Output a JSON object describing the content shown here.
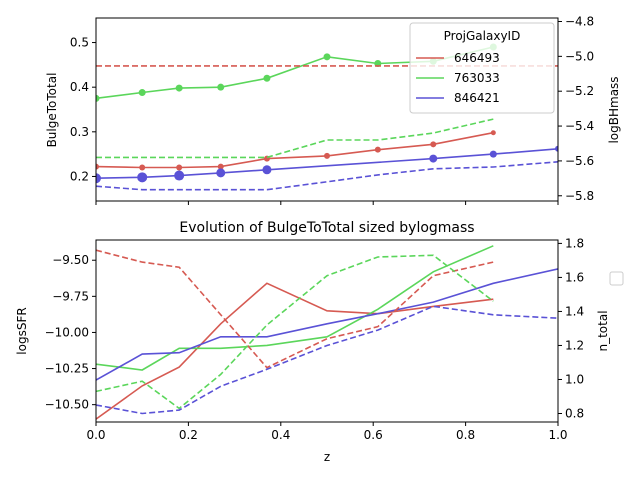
{
  "figure": {
    "background": "#ffffff"
  },
  "chart_data": [
    {
      "type": "line",
      "panel": "top",
      "title": "",
      "xlabel": "",
      "ylabel": "BulgeToTotal",
      "ylabel_right": "logBHmass",
      "xlim": [
        0,
        1
      ],
      "ylim": [
        0.145,
        0.555
      ],
      "ylim_right": [
        -5.83,
        -4.78
      ],
      "yticks": [
        0.2,
        0.3,
        0.4,
        0.5
      ],
      "yticks_labels": [
        "0.2",
        "0.3",
        "0.4",
        "0.5"
      ],
      "yticks_right": [
        -5.8,
        -5.6,
        -5.4,
        -5.2,
        -5.0,
        -4.8
      ],
      "yticks_right_labels": [
        "−5.8",
        "−5.6",
        "−5.4",
        "−5.2",
        "−5.0",
        "−4.8"
      ],
      "xticks": [
        0,
        0.2,
        0.4,
        0.6,
        0.8,
        1.0
      ],
      "show_xtick_labels": false,
      "grid": false,
      "legend": {
        "title": "ProjGalaxyID",
        "placement": "top-right",
        "entries": [
          "646493",
          "763033",
          "846421"
        ]
      },
      "series": [
        {
          "name": "646493",
          "color": "#d65a52",
          "axis": "left",
          "style": "solid",
          "x": [
            0,
            0.1,
            0.18,
            0.27,
            0.37,
            0.5,
            0.61,
            0.73,
            0.86
          ],
          "values": [
            0.222,
            0.22,
            0.22,
            0.222,
            0.24,
            0.246,
            0.26,
            0.272,
            0.298
          ],
          "marker_sizes": [
            3,
            3,
            3,
            3,
            3,
            3,
            3,
            3,
            2.5
          ]
        },
        {
          "name": "763033",
          "color": "#5bd65b",
          "axis": "left",
          "style": "solid",
          "x": [
            0,
            0.1,
            0.18,
            0.27,
            0.37,
            0.5,
            0.61,
            0.73,
            0.86
          ],
          "values": [
            0.375,
            0.388,
            0.398,
            0.4,
            0.42,
            0.468,
            0.453,
            0.458,
            0.49
          ],
          "marker_sizes": [
            3.5,
            3.5,
            3.5,
            3.5,
            3.5,
            3.5,
            3.5,
            3.5,
            3.5
          ]
        },
        {
          "name": "846421",
          "color": "#5a52d6",
          "axis": "left",
          "style": "solid",
          "x": [
            0,
            0.1,
            0.18,
            0.27,
            0.37,
            0.73,
            0.86,
            1.0
          ],
          "values": [
            0.196,
            0.198,
            0.202,
            0.208,
            0.215,
            0.24,
            0.25,
            0.262
          ],
          "marker_sizes": [
            5,
            5,
            5,
            4.5,
            4.5,
            4,
            3.5,
            3
          ]
        },
        {
          "name": "646493",
          "color": "#d65a52",
          "axis": "right",
          "style": "dashed",
          "x": [
            0,
            1.0
          ],
          "values": [
            -5.055,
            -5.055
          ]
        },
        {
          "name": "763033",
          "color": "#5bd65b",
          "axis": "right",
          "style": "dashed",
          "x": [
            0,
            0.1,
            0.18,
            0.27,
            0.37,
            0.5,
            0.61,
            0.73,
            0.86
          ],
          "values": [
            -5.58,
            -5.58,
            -5.58,
            -5.58,
            -5.58,
            -5.48,
            -5.48,
            -5.44,
            -5.36
          ]
        },
        {
          "name": "846421",
          "color": "#5a52d6",
          "axis": "right",
          "style": "dashed",
          "x": [
            0,
            0.1,
            0.18,
            0.27,
            0.37,
            0.5,
            0.61,
            0.73,
            0.86,
            1.0
          ],
          "values": [
            -5.745,
            -5.765,
            -5.765,
            -5.765,
            -5.765,
            -5.72,
            -5.68,
            -5.645,
            -5.635,
            -5.605
          ]
        }
      ]
    },
    {
      "type": "line",
      "panel": "bottom",
      "title": "Evolution of BulgeToTotal sized bylogmass",
      "xlabel": "z",
      "ylabel": "logsSFR",
      "ylabel_right": "n_total",
      "xlim": [
        0,
        1
      ],
      "ylim": [
        -10.62,
        -9.36
      ],
      "ylim_right": [
        0.75,
        1.82
      ],
      "yticks": [
        -10.5,
        -10.25,
        -10.0,
        -9.75,
        -9.5
      ],
      "yticks_labels": [
        "−10.50",
        "−10.25",
        "−10.00",
        "−9.75",
        "−9.50"
      ],
      "yticks_right": [
        0.8,
        1.0,
        1.2,
        1.4,
        1.6,
        1.8
      ],
      "yticks_right_labels": [
        "0.8",
        "1.0",
        "1.2",
        "1.4",
        "1.6",
        "1.8"
      ],
      "xticks": [
        0,
        0.2,
        0.4,
        0.6,
        0.8,
        1.0
      ],
      "xticks_labels": [
        "0.0",
        "0.2",
        "0.4",
        "0.6",
        "0.8",
        "1.0"
      ],
      "grid": false,
      "legend": {
        "title": "",
        "placement": "right-outside",
        "entries": []
      },
      "series": [
        {
          "name": "646493",
          "color": "#d65a52",
          "axis": "left",
          "style": "solid",
          "x": [
            0,
            0.1,
            0.18,
            0.27,
            0.37,
            0.5,
            0.61,
            0.73,
            0.86
          ],
          "values": [
            -10.6,
            -10.37,
            -10.24,
            -9.94,
            -9.66,
            -9.85,
            -9.87,
            -9.82,
            -9.77
          ]
        },
        {
          "name": "763033",
          "color": "#5bd65b",
          "axis": "left",
          "style": "solid",
          "x": [
            0,
            0.1,
            0.18,
            0.27,
            0.37,
            0.5,
            0.61,
            0.73,
            0.86
          ],
          "values": [
            -10.22,
            -10.26,
            -10.11,
            -10.11,
            -10.09,
            -10.03,
            -9.84,
            -9.58,
            -9.4
          ]
        },
        {
          "name": "846421",
          "color": "#5a52d6",
          "axis": "left",
          "style": "solid",
          "x": [
            0,
            0.1,
            0.18,
            0.27,
            0.37,
            0.5,
            0.61,
            0.73,
            0.86,
            1.0
          ],
          "values": [
            -10.33,
            -10.15,
            -10.14,
            -10.03,
            -10.03,
            -9.94,
            -9.87,
            -9.79,
            -9.66,
            -9.56
          ]
        },
        {
          "name": "646493",
          "color": "#d65a52",
          "axis": "right",
          "style": "dashed",
          "x": [
            0,
            0.1,
            0.18,
            0.37,
            0.5,
            0.61,
            0.73,
            0.86
          ],
          "values": [
            1.76,
            1.69,
            1.66,
            1.07,
            1.24,
            1.31,
            1.61,
            1.69
          ]
        },
        {
          "name": "763033",
          "color": "#5bd65b",
          "axis": "right",
          "style": "dashed",
          "x": [
            0,
            0.1,
            0.18,
            0.27,
            0.37,
            0.5,
            0.61,
            0.73,
            0.86
          ],
          "values": [
            0.93,
            0.99,
            0.83,
            1.03,
            1.32,
            1.61,
            1.72,
            1.73,
            1.46
          ]
        },
        {
          "name": "846421",
          "color": "#5a52d6",
          "axis": "right",
          "style": "dashed",
          "x": [
            0,
            0.1,
            0.18,
            0.27,
            0.37,
            0.5,
            0.61,
            0.73,
            0.86,
            1.0
          ],
          "values": [
            0.85,
            0.8,
            0.82,
            0.96,
            1.06,
            1.2,
            1.29,
            1.43,
            1.38,
            1.36
          ]
        }
      ]
    }
  ]
}
